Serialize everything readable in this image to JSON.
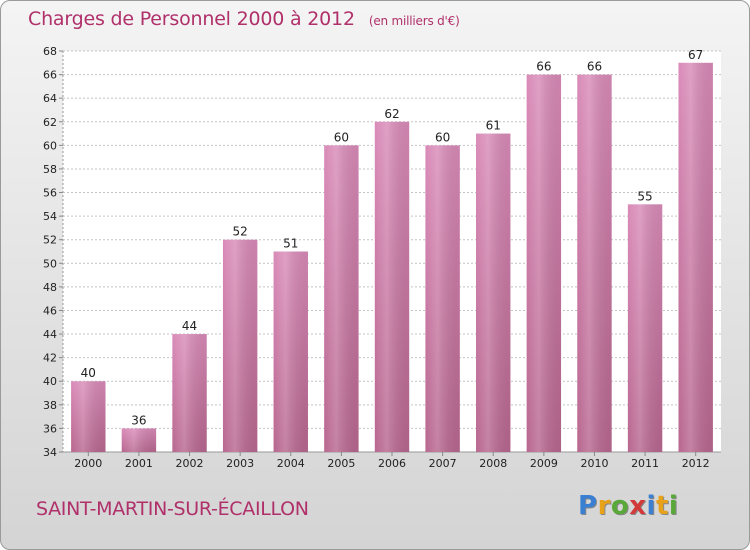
{
  "chart_data": {
    "type": "bar",
    "title": "Charges de Personnel 2000 à 2012",
    "subtitle": "(en milliers d'€)",
    "categories": [
      "2000",
      "2001",
      "2002",
      "2003",
      "2004",
      "2005",
      "2006",
      "2007",
      "2008",
      "2009",
      "2010",
      "2011",
      "2012"
    ],
    "values": [
      40,
      36,
      44,
      52,
      51,
      60,
      62,
      60,
      61,
      66,
      66,
      55,
      67
    ],
    "ylim": [
      34,
      68
    ],
    "ytick_step": 2,
    "grid": true,
    "bar_color": "#d98bb8",
    "bar_color_dark": "#b8678f"
  },
  "footer": {
    "commune": "SAINT-MARTIN-SUR-ÉCAILLON",
    "logo_letters": [
      {
        "char": "P",
        "color": "#3a7fd1"
      },
      {
        "char": "r",
        "color": "#e8a21a"
      },
      {
        "char": "o",
        "color": "#59a83a"
      },
      {
        "char": "x",
        "color": "#d23a3a"
      },
      {
        "char": "i",
        "color": "#3a7fd1"
      },
      {
        "char": "t",
        "color": "#e8a21a"
      },
      {
        "char": "i",
        "color": "#59a83a"
      }
    ]
  }
}
